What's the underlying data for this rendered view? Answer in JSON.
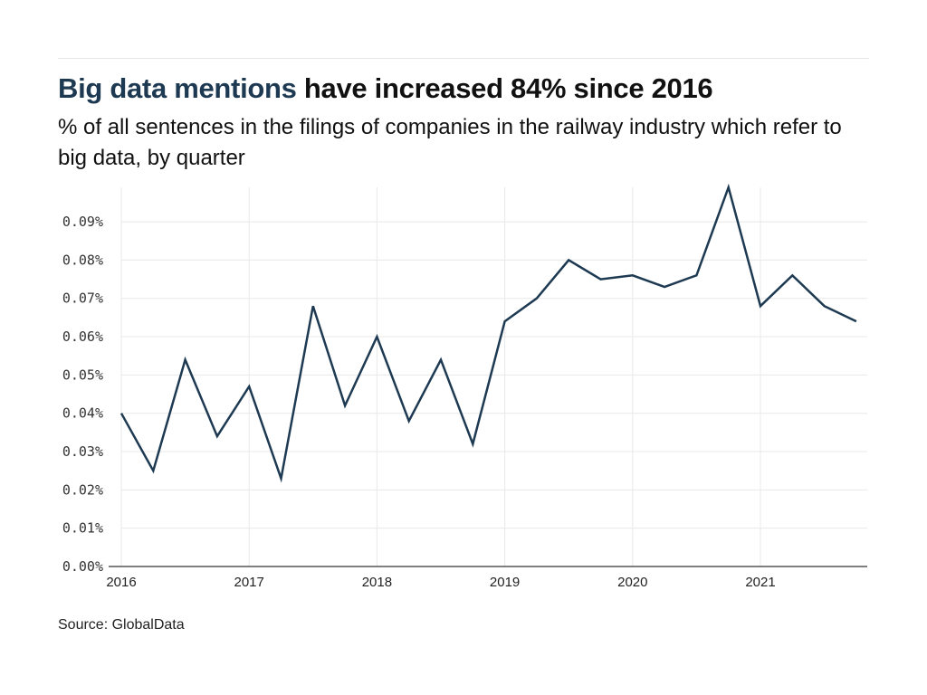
{
  "header": {
    "title_highlight": "Big data mentions",
    "title_rest": " have increased 84% since 2016",
    "subtitle": "% of all sentences in the filings of companies in the railway industry which refer to big data, by quarter"
  },
  "footer": {
    "source": "Source: GlobalData"
  },
  "colors": {
    "line": "#1e3a52",
    "title_highlight": "#1e3a52",
    "grid": "#e8e8e8",
    "axis": "#555555"
  },
  "chart_data": {
    "type": "line",
    "title": "Big data mentions have increased 84% since 2016",
    "subtitle": "% of all sentences in the filings of companies in the railway industry which refer to big data, by quarter",
    "xlabel": "",
    "ylabel": "",
    "x": [
      "2016 Q1",
      "2016 Q2",
      "2016 Q3",
      "2016 Q4",
      "2017 Q1",
      "2017 Q2",
      "2017 Q3",
      "2017 Q4",
      "2018 Q1",
      "2018 Q2",
      "2018 Q3",
      "2018 Q4",
      "2019 Q1",
      "2019 Q2",
      "2019 Q3",
      "2019 Q4",
      "2020 Q1",
      "2020 Q2",
      "2020 Q3",
      "2020 Q4",
      "2021 Q1",
      "2021 Q2",
      "2021 Q3",
      "2021 Q4"
    ],
    "series": [
      {
        "name": "Big data mentions",
        "values": [
          0.04,
          0.025,
          0.054,
          0.034,
          0.047,
          0.023,
          0.068,
          0.042,
          0.06,
          0.038,
          0.054,
          0.032,
          0.064,
          0.07,
          0.08,
          0.075,
          0.076,
          0.073,
          0.076,
          0.099,
          0.068,
          0.076,
          0.068,
          0.064
        ]
      }
    ],
    "x_tick_labels": [
      "2016",
      "2017",
      "2018",
      "2019",
      "2020",
      "2021"
    ],
    "y_tick_values": [
      0,
      0.01,
      0.02,
      0.03,
      0.04,
      0.05,
      0.06,
      0.07,
      0.08,
      0.09
    ],
    "y_tick_labels": [
      "0.00%",
      "0.01%",
      "0.02%",
      "0.03%",
      "0.04%",
      "0.05%",
      "0.06%",
      "0.07%",
      "0.08%",
      "0.09%"
    ],
    "ylim": [
      0,
      0.099
    ],
    "grid": true,
    "legend": "none",
    "source": "Source: GlobalData"
  }
}
